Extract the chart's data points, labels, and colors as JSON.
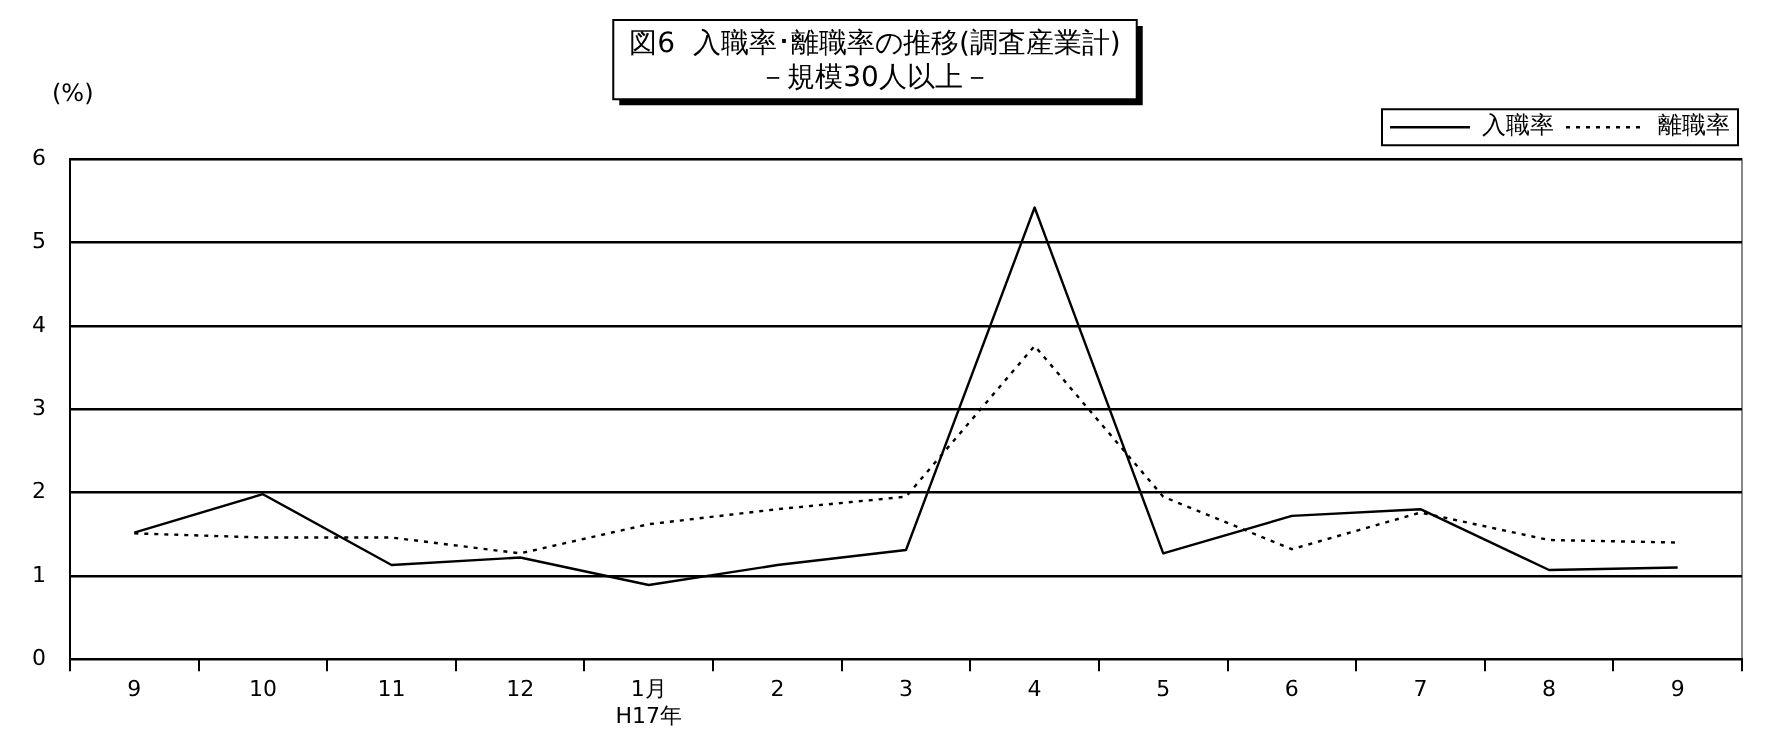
{
  "chart_data": {
    "type": "line",
    "title": "図6  入職率･離職率の推移(調査産業計)",
    "subtitle": "－規模30人以上－",
    "ylabel": "(%)",
    "categories": [
      "9",
      "10",
      "11",
      "12",
      "1月\nH17年",
      "2",
      "3",
      "4",
      "5",
      "6",
      "7",
      "8",
      "9"
    ],
    "series": [
      {
        "name": "入職率",
        "color": "#000000",
        "line_style": "solid",
        "values": [
          1.52,
          1.98,
          1.13,
          1.22,
          0.89,
          1.13,
          1.31,
          5.42,
          1.27,
          1.72,
          1.8,
          1.07,
          1.1
        ]
      },
      {
        "name": "離職率",
        "color": "#000000",
        "line_style": "dotted",
        "values": [
          1.51,
          1.46,
          1.46,
          1.27,
          1.62,
          1.8,
          1.95,
          3.76,
          1.95,
          1.32,
          1.76,
          1.43,
          1.4
        ]
      }
    ],
    "ylim": [
      0,
      6
    ],
    "yticks": [
      0,
      1,
      2,
      3,
      4,
      5,
      6
    ],
    "grid": "y",
    "legend": "top right",
    "marker": "none"
  }
}
